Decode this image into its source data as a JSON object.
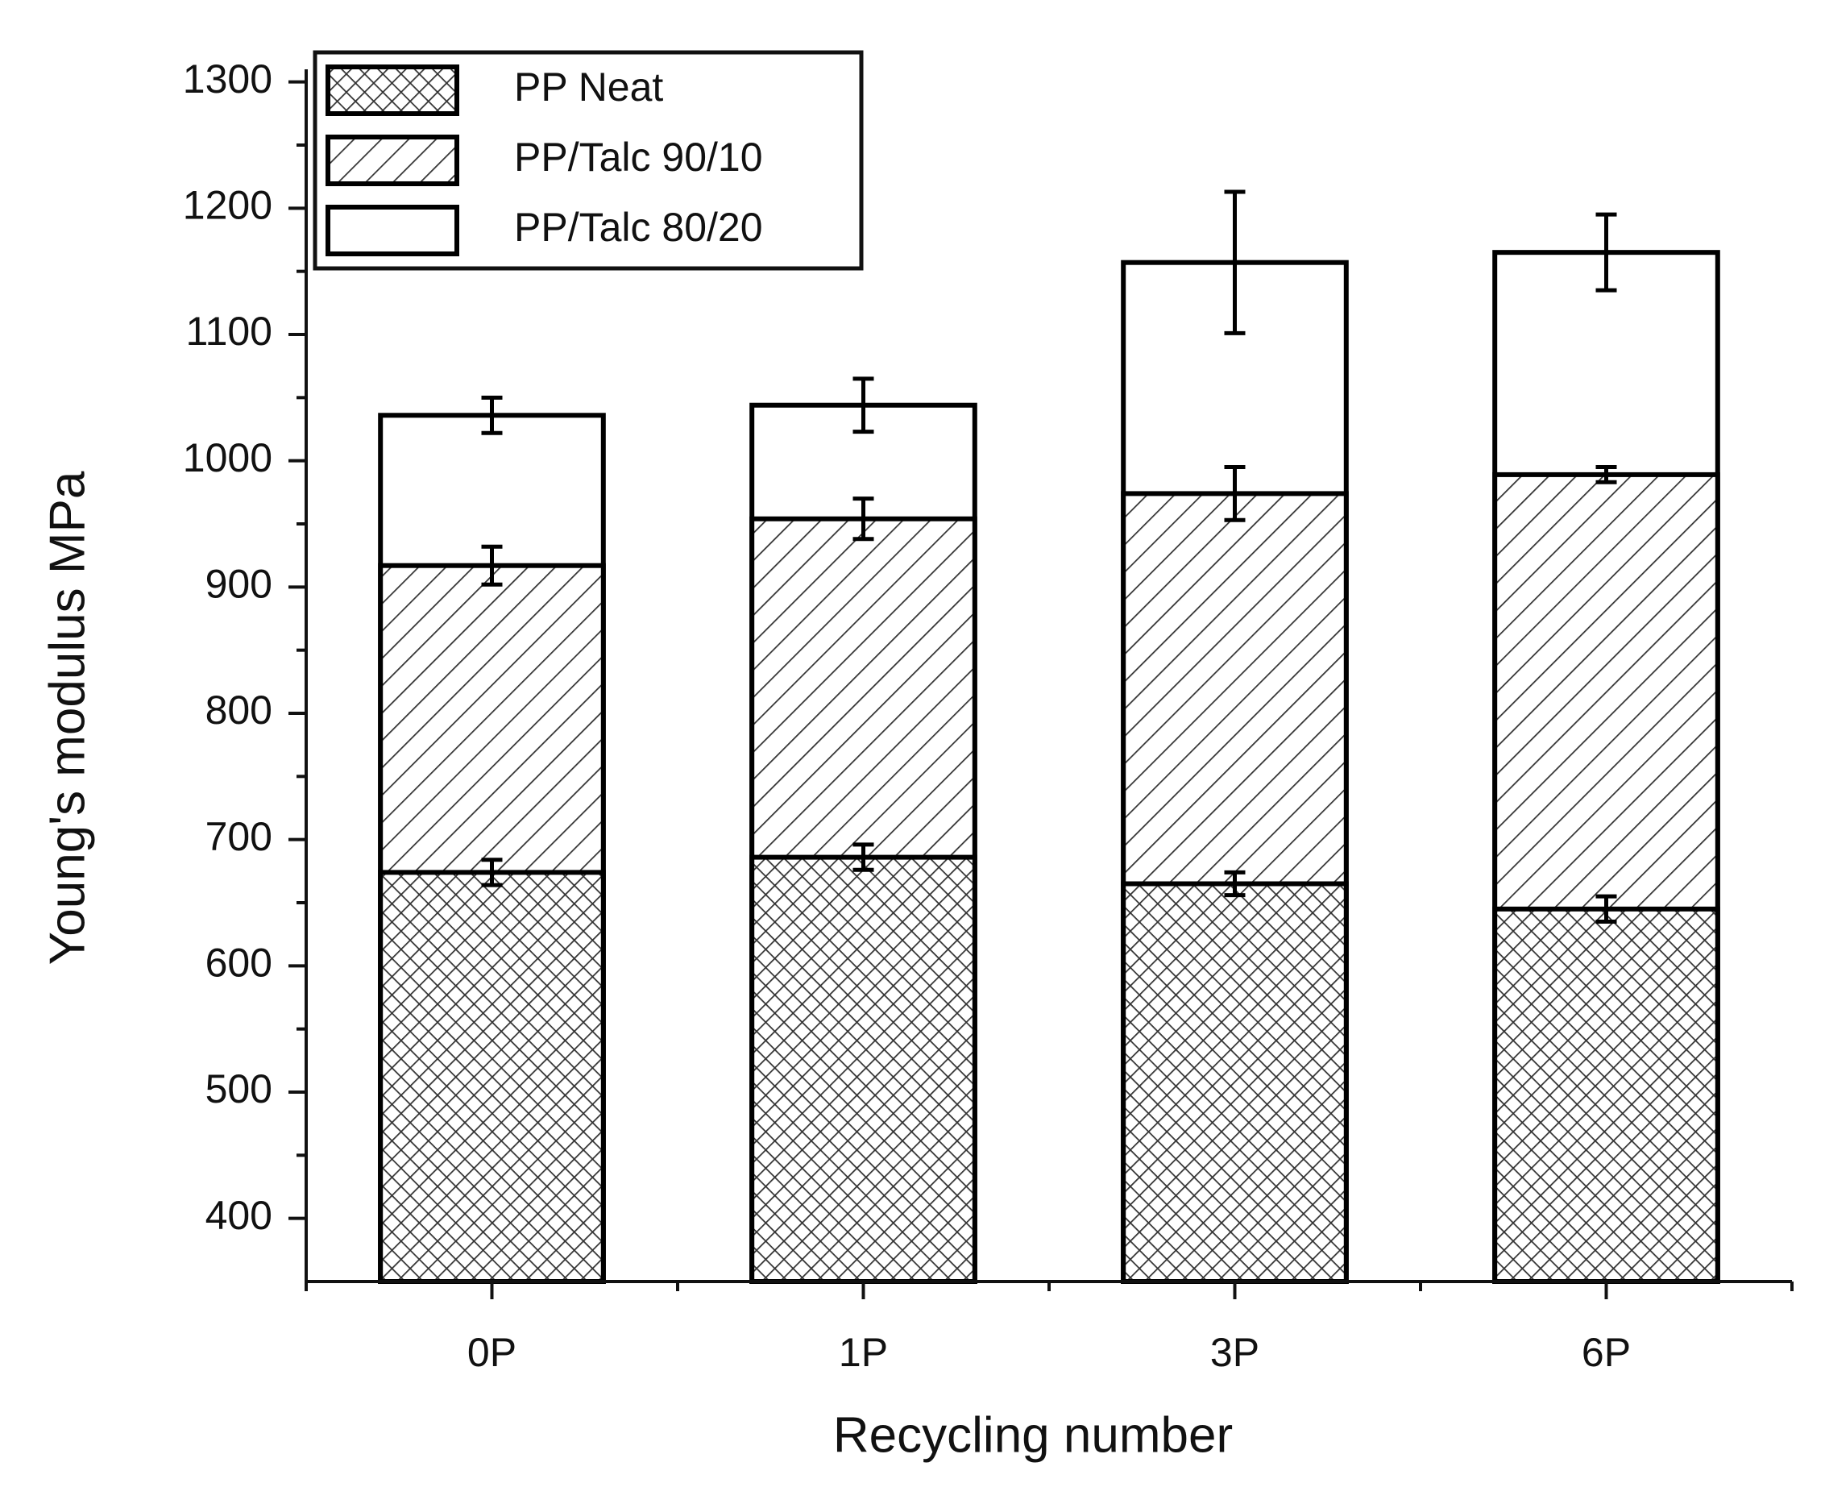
{
  "chart_data": {
    "type": "bar",
    "y_label": "Young's modulus MPa",
    "x_label": "Recycling number",
    "categories": [
      "0P",
      "1P",
      "3P",
      "6P"
    ],
    "series": [
      {
        "name": "PP Neat",
        "color": "#000000",
        "hatch": "crosshatch",
        "values": [
          674,
          686,
          665,
          645
        ],
        "errors": [
          10,
          10,
          9,
          10
        ]
      },
      {
        "name": "PP/Talc 90/10",
        "color": "#000000",
        "hatch": "diagonal",
        "values": [
          917,
          954,
          974,
          989
        ],
        "errors": [
          15,
          16,
          21,
          6
        ]
      },
      {
        "name": "PP/Talc 80/20",
        "color": "#000000",
        "hatch": "none",
        "values": [
          1036,
          1044,
          1157,
          1165
        ],
        "errors": [
          14,
          21,
          56,
          30
        ]
      }
    ],
    "ylim": [
      350,
      1310
    ],
    "yticks": [
      400,
      500,
      600,
      700,
      800,
      900,
      1000,
      1100,
      1200,
      1300
    ],
    "legend": "upper left",
    "overlap": true
  }
}
